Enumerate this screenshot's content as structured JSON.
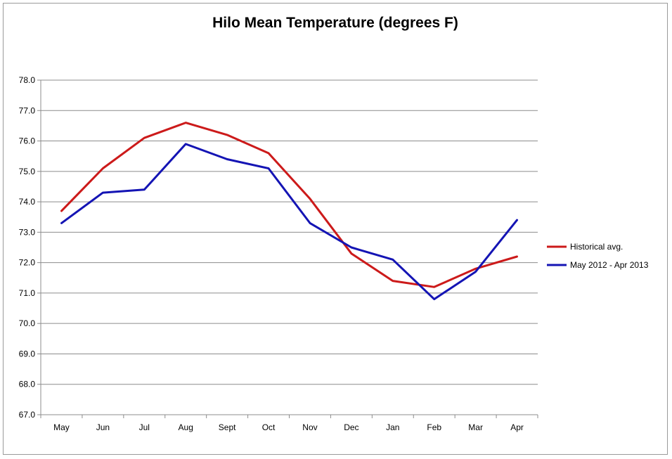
{
  "chart_data": {
    "type": "line",
    "title": "Hilo Mean Temperature (degrees F)",
    "xlabel": "",
    "ylabel": "",
    "categories": [
      "May",
      "Jun",
      "Jul",
      "Aug",
      "Sept",
      "Oct",
      "Nov",
      "Dec",
      "Jan",
      "Feb",
      "Mar",
      "Apr"
    ],
    "ylim": [
      67.0,
      78.0
    ],
    "ytick_step": 1.0,
    "y_tick_decimals": 1,
    "grid": "horizontal",
    "legend_position": "right",
    "series": [
      {
        "name": "Historical avg.",
        "color": "#cc1a1a",
        "values": [
          73.7,
          75.1,
          76.1,
          76.6,
          76.2,
          75.6,
          74.1,
          72.3,
          71.4,
          71.2,
          71.8,
          72.2
        ]
      },
      {
        "name": "May 2012 - Apr 2013",
        "color": "#1414b4",
        "values": [
          73.3,
          74.3,
          74.4,
          75.9,
          75.4,
          75.1,
          73.3,
          72.5,
          72.1,
          70.8,
          71.7,
          73.4
        ]
      }
    ]
  }
}
